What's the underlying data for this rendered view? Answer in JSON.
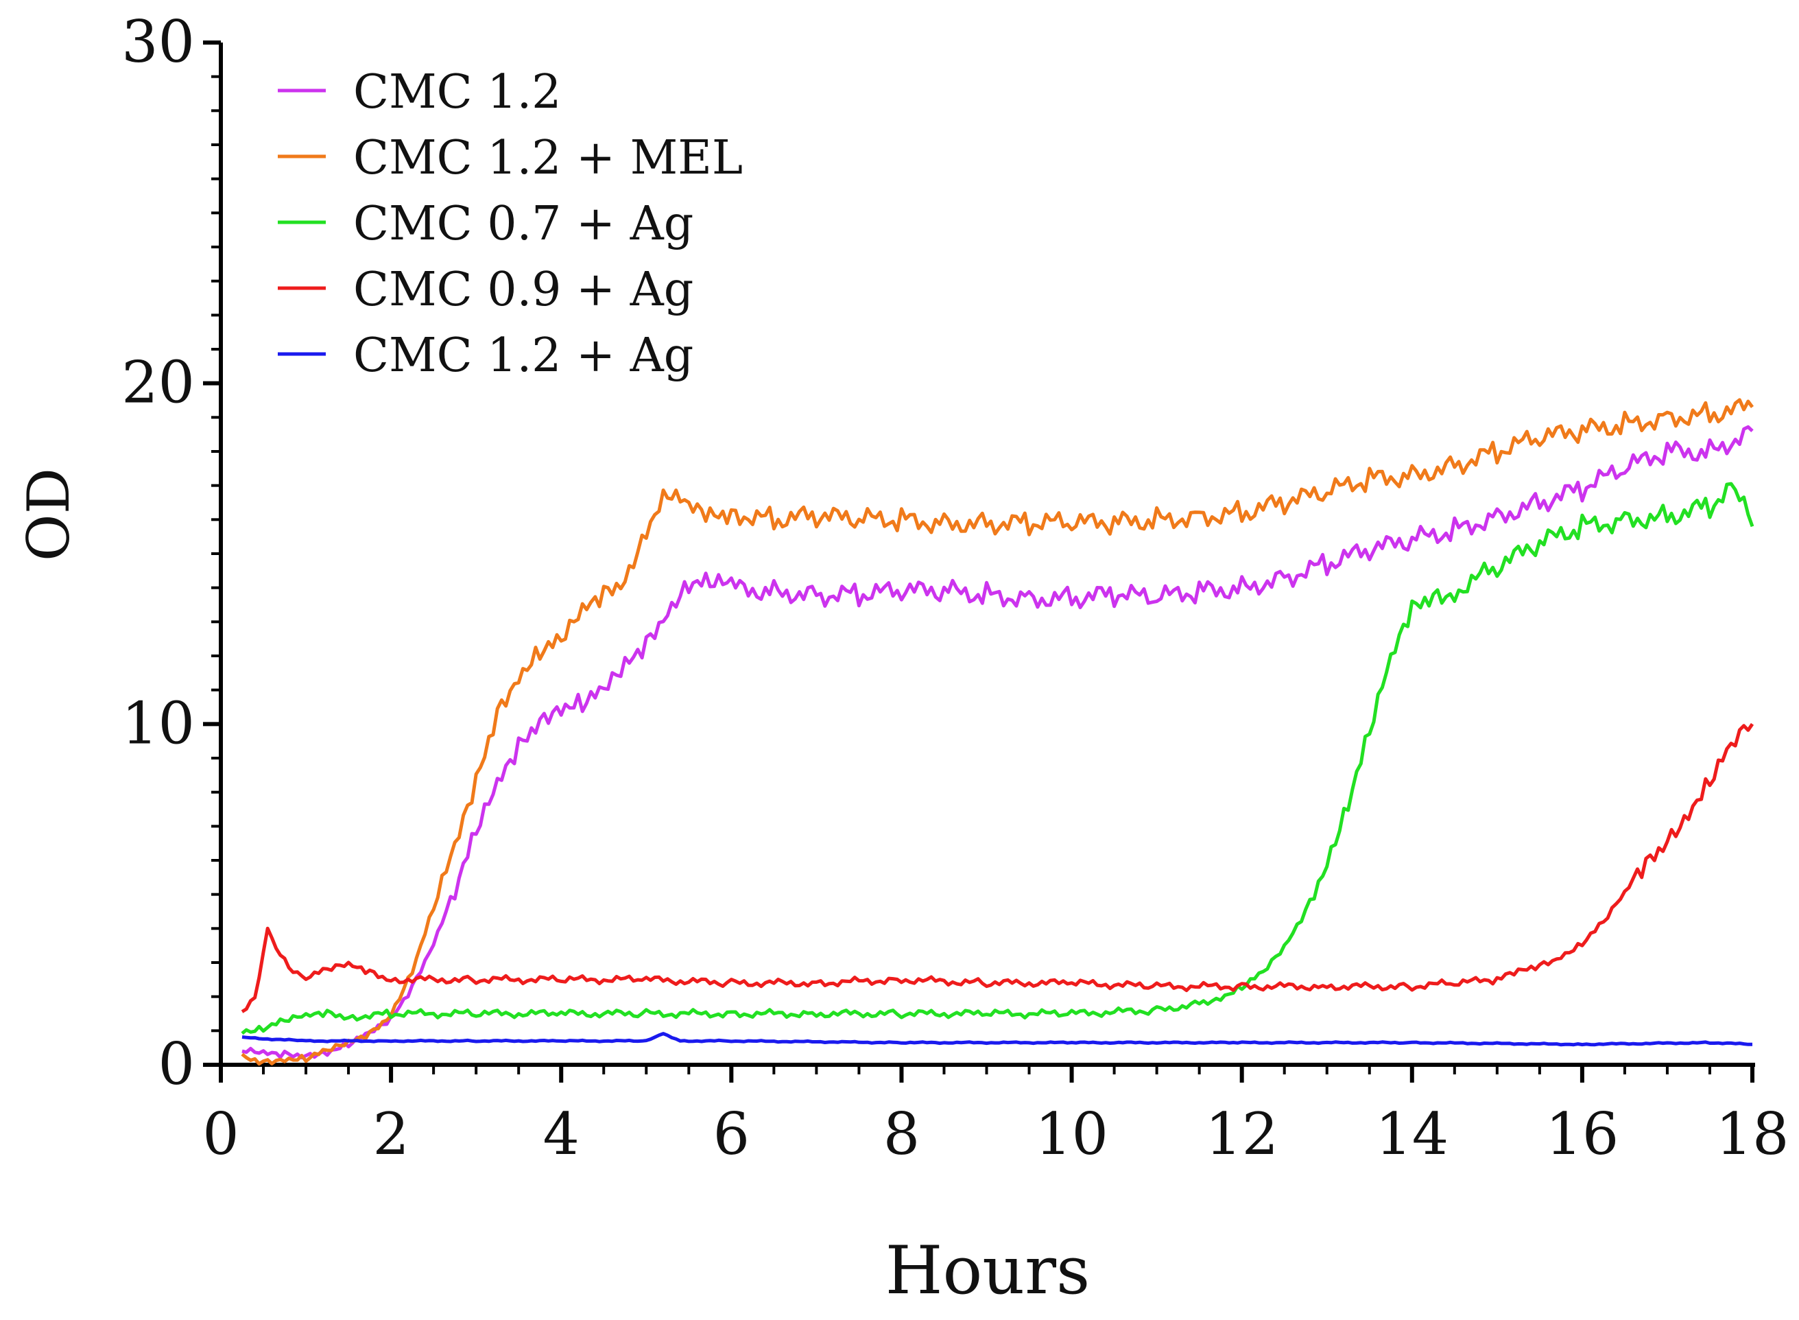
{
  "chart_data": {
    "type": "line",
    "title": "",
    "xlabel": "Hours",
    "ylabel": "OD",
    "xlim": [
      0,
      18
    ],
    "ylim": [
      0,
      30
    ],
    "xticks": [
      0,
      2,
      4,
      6,
      8,
      10,
      12,
      14,
      16,
      18
    ],
    "xtick_labels": [
      "0",
      "2",
      "4",
      "6",
      "8",
      "10",
      "12",
      "14",
      "16",
      "18"
    ],
    "yticks": [
      0,
      10,
      20,
      30
    ],
    "ytick_labels": [
      "0",
      "10",
      "20",
      "30"
    ],
    "legend_position": "top-left",
    "grid": false,
    "series": [
      {
        "name": "CMC 1.2",
        "color": "#cc33ee",
        "x": [
          0.25,
          0.5,
          0.75,
          1.0,
          1.25,
          1.5,
          1.75,
          2.0,
          2.25,
          2.5,
          2.75,
          3.0,
          3.25,
          3.5,
          3.75,
          4.0,
          4.25,
          4.5,
          4.75,
          5.0,
          5.25,
          5.5,
          5.75,
          6.0,
          6.5,
          7.0,
          7.5,
          8.0,
          8.5,
          9.0,
          9.5,
          10.0,
          10.5,
          11.0,
          11.5,
          12.0,
          12.5,
          13.0,
          13.5,
          14.0,
          14.5,
          15.0,
          15.5,
          16.0,
          16.5,
          17.0,
          17.5,
          18.0
        ],
        "values": [
          0.4,
          0.3,
          0.3,
          0.3,
          0.4,
          0.6,
          0.9,
          1.3,
          2.3,
          3.6,
          5.2,
          6.8,
          8.1,
          9.3,
          10.2,
          10.6,
          10.6,
          10.9,
          11.6,
          12.4,
          13.4,
          14.2,
          14.1,
          14.0,
          13.9,
          13.8,
          13.8,
          13.9,
          13.9,
          13.8,
          13.7,
          13.7,
          13.8,
          13.7,
          13.9,
          14.0,
          14.3,
          14.7,
          15.1,
          15.4,
          15.7,
          16.1,
          16.5,
          16.9,
          17.5,
          18.0,
          18.0,
          18.6
        ]
      },
      {
        "name": "CMC 1.2 + MEL",
        "color": "#f07a1a",
        "x": [
          0.25,
          0.5,
          0.75,
          1.0,
          1.25,
          1.5,
          1.75,
          2.0,
          2.25,
          2.5,
          2.75,
          3.0,
          3.25,
          3.5,
          3.75,
          4.0,
          4.25,
          4.5,
          4.75,
          5.0,
          5.25,
          5.5,
          5.75,
          6.0,
          6.5,
          7.0,
          7.5,
          8.0,
          8.5,
          9.0,
          9.5,
          10.0,
          10.5,
          11.0,
          11.5,
          12.0,
          12.5,
          13.0,
          13.5,
          14.0,
          14.5,
          15.0,
          15.5,
          16.0,
          16.5,
          17.0,
          17.5,
          18.0
        ],
        "values": [
          0.2,
          0.1,
          0.2,
          0.2,
          0.4,
          0.6,
          0.9,
          1.5,
          2.8,
          4.6,
          6.3,
          8.2,
          10.4,
          11.5,
          12.2,
          12.4,
          13.2,
          13.8,
          14.3,
          15.8,
          16.8,
          16.3,
          16.0,
          16.2,
          16.0,
          16.1,
          16.0,
          16.0,
          15.9,
          15.9,
          15.9,
          15.9,
          15.9,
          16.0,
          16.1,
          16.2,
          16.5,
          16.8,
          17.2,
          17.3,
          17.6,
          18.0,
          18.4,
          18.6,
          18.8,
          19.0,
          19.1,
          19.3
        ]
      },
      {
        "name": "CMC 0.7 + Ag",
        "color": "#22e022",
        "x": [
          0.25,
          0.5,
          0.75,
          1.0,
          1.25,
          1.5,
          2.0,
          3.0,
          4.0,
          5.0,
          6.0,
          7.0,
          8.0,
          9.0,
          10.0,
          11.0,
          11.5,
          11.75,
          12.0,
          12.25,
          12.5,
          12.75,
          13.0,
          13.25,
          13.5,
          13.75,
          14.0,
          14.25,
          14.5,
          15.0,
          15.5,
          16.0,
          16.5,
          17.0,
          17.5,
          17.8,
          18.0
        ],
        "values": [
          1.0,
          1.1,
          1.3,
          1.4,
          1.5,
          1.4,
          1.5,
          1.5,
          1.5,
          1.5,
          1.5,
          1.5,
          1.5,
          1.5,
          1.5,
          1.6,
          1.8,
          2.0,
          2.3,
          2.7,
          3.4,
          4.5,
          6.0,
          7.8,
          9.8,
          11.8,
          13.3,
          13.8,
          13.9,
          14.6,
          15.3,
          15.8,
          16.0,
          16.1,
          16.4,
          17.0,
          15.8
        ]
      },
      {
        "name": "CMC 0.9 + Ag",
        "color": "#ee1c1c",
        "x": [
          0.25,
          0.4,
          0.55,
          0.7,
          0.85,
          1.0,
          1.25,
          1.5,
          1.75,
          2.0,
          3.0,
          4.0,
          5.0,
          6.0,
          7.0,
          8.0,
          9.0,
          10.0,
          11.0,
          12.0,
          13.0,
          14.0,
          14.5,
          15.0,
          15.25,
          15.5,
          15.75,
          16.0,
          16.25,
          16.5,
          16.75,
          17.0,
          17.25,
          17.5,
          17.75,
          18.0
        ],
        "values": [
          1.6,
          1.9,
          3.9,
          3.2,
          2.8,
          2.6,
          2.8,
          2.9,
          2.7,
          2.5,
          2.5,
          2.5,
          2.5,
          2.4,
          2.4,
          2.5,
          2.4,
          2.4,
          2.3,
          2.3,
          2.3,
          2.3,
          2.4,
          2.5,
          2.7,
          2.9,
          3.2,
          3.6,
          4.2,
          5.0,
          5.8,
          6.6,
          7.5,
          8.4,
          9.3,
          10.0
        ]
      },
      {
        "name": "CMC 1.2 + Ag",
        "color": "#1a1aee",
        "x": [
          0.25,
          1.0,
          2.0,
          3.0,
          4.0,
          5.0,
          5.2,
          5.4,
          6.0,
          8.0,
          10.0,
          12.0,
          14.0,
          16.0,
          17.5,
          18.0
        ],
        "values": [
          0.8,
          0.7,
          0.7,
          0.7,
          0.7,
          0.7,
          0.9,
          0.7,
          0.7,
          0.65,
          0.65,
          0.65,
          0.65,
          0.6,
          0.65,
          0.6
        ]
      }
    ]
  }
}
